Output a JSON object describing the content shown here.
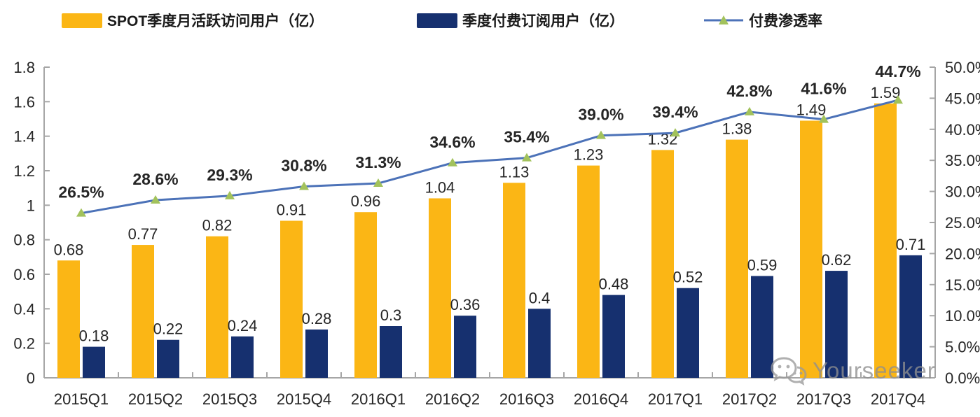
{
  "legend": {
    "items": [
      {
        "label": "SPOT季度月活跃访问用户（亿）",
        "type": "bar",
        "color": "#FBB615"
      },
      {
        "label": "季度付费订阅用户（亿）",
        "type": "bar",
        "color": "#16306F"
      },
      {
        "label": "付费渗透率",
        "type": "line",
        "color": "#4C72B8",
        "marker_color": "#A2C25C"
      }
    ]
  },
  "chart_data": {
    "type": "bar",
    "subtype": "grouped-bars-with-line",
    "categories": [
      "2015Q1",
      "2015Q2",
      "2015Q3",
      "2015Q4",
      "2016Q1",
      "2016Q2",
      "2016Q3",
      "2016Q4",
      "2017Q1",
      "2017Q2",
      "2017Q3",
      "2017Q4"
    ],
    "series": [
      {
        "name": "SPOT季度月活跃访问用户（亿）",
        "type": "bar",
        "axis": "left",
        "color": "#FBB615",
        "values": [
          0.68,
          0.77,
          0.82,
          0.91,
          0.96,
          1.04,
          1.13,
          1.23,
          1.32,
          1.38,
          1.49,
          1.59
        ],
        "labels": [
          "0.68",
          "0.77",
          "0.82",
          "0.91",
          "0.96",
          "1.04",
          "1.13",
          "1.23",
          "1.32",
          "1.38",
          "1.49",
          "1.59"
        ]
      },
      {
        "name": "季度付费订阅用户（亿）",
        "type": "bar",
        "axis": "left",
        "color": "#16306F",
        "values": [
          0.18,
          0.22,
          0.24,
          0.28,
          0.3,
          0.36,
          0.4,
          0.48,
          0.52,
          0.59,
          0.62,
          0.71
        ],
        "labels": [
          "0.18",
          "0.22",
          "0.24",
          "0.28",
          "0.3",
          "0.36",
          "0.4",
          "0.48",
          "0.52",
          "0.59",
          "0.62",
          "0.71"
        ]
      },
      {
        "name": "付费渗透率",
        "type": "line",
        "axis": "right",
        "color": "#4C72B8",
        "marker": "triangle",
        "marker_color": "#A2C25C",
        "values": [
          26.5,
          28.6,
          29.3,
          30.8,
          31.3,
          34.6,
          35.4,
          39.0,
          39.4,
          42.8,
          41.6,
          44.7
        ],
        "labels": [
          "26.5%",
          "28.6%",
          "29.3%",
          "30.8%",
          "31.3%",
          "34.6%",
          "35.4%",
          "39.0%",
          "39.4%",
          "42.8%",
          "41.6%",
          "44.7%"
        ]
      }
    ],
    "left_axis": {
      "min": 0,
      "max": 1.8,
      "step": 0.2,
      "ticks": [
        "0",
        "0.2",
        "0.4",
        "0.6",
        "0.8",
        "1",
        "1.2",
        "1.4",
        "1.6",
        "1.8"
      ]
    },
    "right_axis": {
      "min": 0,
      "max": 50,
      "step": 5,
      "ticks": [
        "0.0%",
        "5.0%",
        "10.0%",
        "15.0%",
        "20.0%",
        "25.0%",
        "30.0%",
        "35.0%",
        "40.0%",
        "45.0%",
        "50.0%"
      ]
    },
    "grid": false,
    "legend_position": "top",
    "axis_color": "#A6A6A6",
    "text_color": "#262626"
  },
  "watermark": {
    "text": "Yourseeker",
    "icon": "wechat-icon"
  }
}
